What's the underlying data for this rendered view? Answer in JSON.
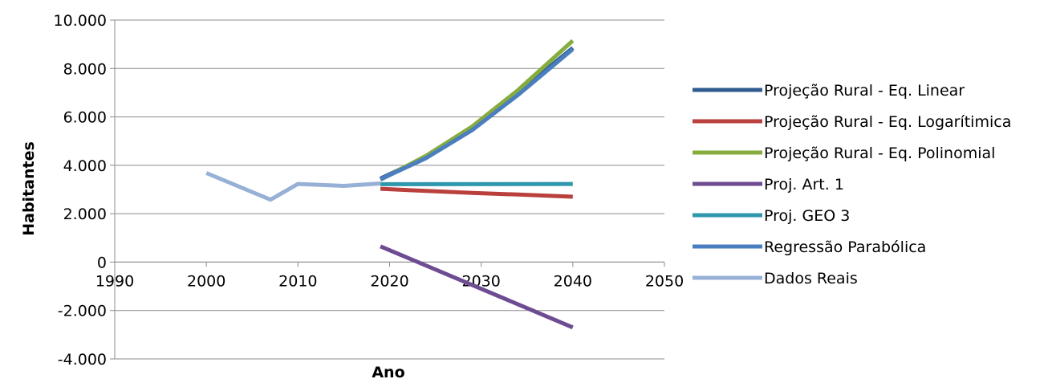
{
  "chart_data": {
    "type": "line",
    "xlabel": "Ano",
    "ylabel": "Habitantes",
    "xlim": [
      1990,
      2050
    ],
    "ylim": [
      -4000,
      10000
    ],
    "x_ticks": [
      1990,
      2000,
      2010,
      2020,
      2030,
      2040,
      2050
    ],
    "y_ticks": [
      -4000,
      -2000,
      0,
      2000,
      4000,
      6000,
      8000,
      10000
    ],
    "x_tick_labels": [
      "1990",
      "2000",
      "2010",
      "2020",
      "2030",
      "2040",
      "2050"
    ],
    "y_tick_labels": [
      "-4.000",
      "-2.000",
      "0",
      "2.000",
      "4.000",
      "6.000",
      "8.000",
      "10.000"
    ],
    "grid": "horizontal",
    "legend_position": "right",
    "series": [
      {
        "name": "Projeção Rural - Eq. Linear",
        "color": "#2F5B8F",
        "x": [
          2019,
          2024,
          2029,
          2034,
          2040
        ],
        "y": [
          3450,
          4350,
          5550,
          7000,
          8850
        ]
      },
      {
        "name": "Projeção Rural - Eq. Logarítimica",
        "color": "#B9403C",
        "x": [
          2019,
          2024,
          2029,
          2034,
          2040
        ],
        "y": [
          3030,
          2940,
          2860,
          2790,
          2700
        ]
      },
      {
        "name": "Projeção Rural - Eq. Polinomial",
        "color": "#86AC3E",
        "x": [
          2019,
          2024,
          2029,
          2034,
          2040
        ],
        "y": [
          3400,
          4400,
          5600,
          7100,
          9150
        ]
      },
      {
        "name": "Proj. Art. 1",
        "color": "#6E4C92",
        "x": [
          2019,
          2040
        ],
        "y": [
          650,
          -2700
        ]
      },
      {
        "name": "Proj. GEO 3",
        "color": "#2F97AD",
        "x": [
          2019,
          2040
        ],
        "y": [
          3220,
          3230
        ]
      },
      {
        "name": "Regressão Parabólica",
        "color": "#4A7EC0",
        "x": [
          2019,
          2024,
          2029,
          2034,
          2040
        ],
        "y": [
          3420,
          4300,
          5450,
          6900,
          8800
        ]
      },
      {
        "name": "Dados Reais",
        "color": "#97B0D6",
        "x": [
          2000,
          2007,
          2010,
          2015,
          2019
        ],
        "y": [
          3680,
          2580,
          3230,
          3150,
          3250
        ]
      }
    ]
  }
}
